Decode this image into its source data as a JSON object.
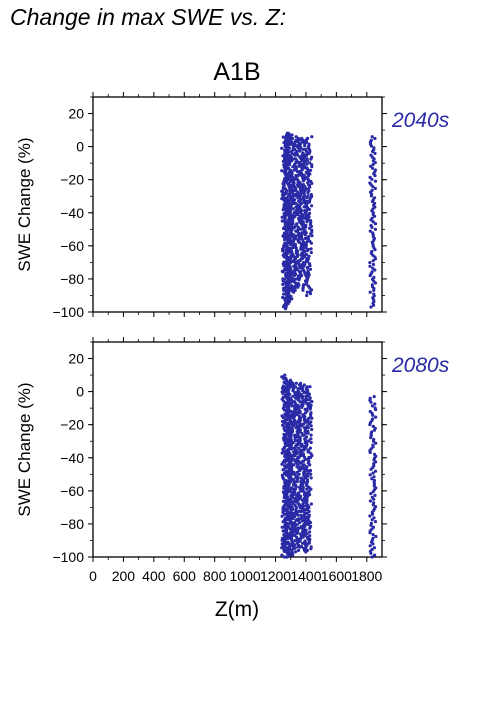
{
  "header": {
    "title": "Change in max SWE vs. Z:"
  },
  "colors": {
    "points": "#2a2aa6",
    "label": "#2a2aa6",
    "axis": "#000000"
  },
  "chart_data": {
    "type": "scatter",
    "title": "A1B",
    "xlabel": "Z(m)",
    "xlim": [
      0,
      1900
    ],
    "xticks": [
      0,
      200,
      400,
      600,
      800,
      1000,
      1200,
      1400,
      1600,
      1800
    ],
    "xtick_labels": [
      "0",
      "200",
      "400",
      "600",
      "800",
      "1000",
      "1200",
      "1400",
      "1600",
      "1800"
    ],
    "panels": [
      {
        "label": "2040s",
        "ylabel": "SWE Change (%)",
        "ylim": [
          -100,
          30
        ],
        "yticks": [
          20,
          0,
          -20,
          -40,
          -60,
          -80,
          -100
        ],
        "ytick_labels": [
          "20",
          "0",
          "−20",
          "−40",
          "−60",
          "−80",
          "−100"
        ],
        "series": [
          {
            "x": 1260,
            "y_min": -98,
            "y_max": 8
          },
          {
            "x": 1270,
            "y_min": -97,
            "y_max": 8
          },
          {
            "x": 1280,
            "y_min": -96,
            "y_max": 8
          },
          {
            "x": 1290,
            "y_min": -95,
            "y_max": 7
          },
          {
            "x": 1300,
            "y_min": -92,
            "y_max": 7
          },
          {
            "x": 1320,
            "y_min": -88,
            "y_max": 6
          },
          {
            "x": 1340,
            "y_min": -85,
            "y_max": 5
          },
          {
            "x": 1360,
            "y_min": -80,
            "y_max": 5
          },
          {
            "x": 1380,
            "y_min": -78,
            "y_max": 4
          },
          {
            "x": 1400,
            "y_min": -88,
            "y_max": 5
          },
          {
            "x": 1420,
            "y_min": -90,
            "y_max": 6
          },
          {
            "x": 1840,
            "y_min": -97,
            "y_max": 6
          }
        ]
      },
      {
        "label": "2080s",
        "ylabel": "SWE Change (%)",
        "ylim": [
          -100,
          30
        ],
        "yticks": [
          20,
          0,
          -20,
          -40,
          -60,
          -80,
          -100
        ],
        "ytick_labels": [
          "20",
          "0",
          "−20",
          "−40",
          "−60",
          "−80",
          "−100"
        ],
        "series": [
          {
            "x": 1260,
            "y_min": -100,
            "y_max": 10
          },
          {
            "x": 1270,
            "y_min": -100,
            "y_max": 9
          },
          {
            "x": 1280,
            "y_min": -100,
            "y_max": 8
          },
          {
            "x": 1290,
            "y_min": -100,
            "y_max": 6
          },
          {
            "x": 1300,
            "y_min": -99,
            "y_max": 5
          },
          {
            "x": 1320,
            "y_min": -98,
            "y_max": 5
          },
          {
            "x": 1340,
            "y_min": -96,
            "y_max": 4
          },
          {
            "x": 1360,
            "y_min": -94,
            "y_max": 3
          },
          {
            "x": 1380,
            "y_min": -97,
            "y_max": 5
          },
          {
            "x": 1400,
            "y_min": -96,
            "y_max": 4
          },
          {
            "x": 1420,
            "y_min": -95,
            "y_max": 3
          },
          {
            "x": 1840,
            "y_min": -100,
            "y_max": -3
          }
        ]
      }
    ],
    "grid": false,
    "legend": "none"
  }
}
